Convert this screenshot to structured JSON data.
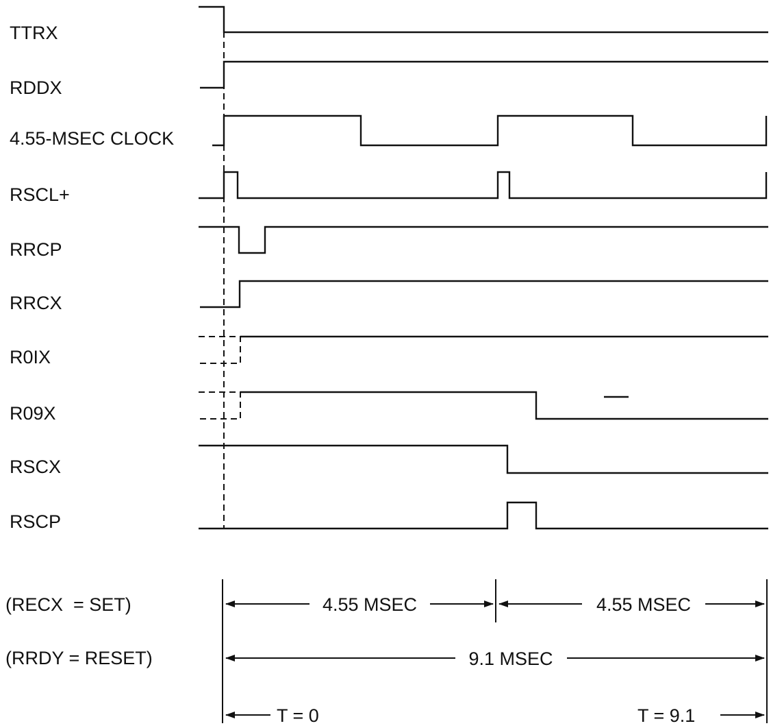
{
  "signals": [
    {
      "id": "ttrx",
      "label": "TTRX"
    },
    {
      "id": "rddx",
      "label": "RDDX"
    },
    {
      "id": "clock",
      "label": "4.55-MSEC CLOCK"
    },
    {
      "id": "rscl",
      "label": "RSCL+"
    },
    {
      "id": "rrcp",
      "label": "RRCP"
    },
    {
      "id": "rrcx",
      "label": "RRCX"
    },
    {
      "id": "r01x",
      "label": "R0IX"
    },
    {
      "id": "r09x",
      "label": "R09X"
    },
    {
      "id": "rscx",
      "label": "RSCX"
    },
    {
      "id": "rscp",
      "label": "RSCP"
    }
  ],
  "conditions": [
    {
      "id": "recx",
      "text": "(RECX  = SET)"
    },
    {
      "id": "rrdy",
      "text": "(RRDY = RESET)"
    }
  ],
  "dimensions": {
    "first_half": "4.55 MSEC",
    "second_half": "4.55 MSEC",
    "total": "9.1 MSEC",
    "t_start": "T = 0",
    "t_end": "T = 9.1"
  }
}
